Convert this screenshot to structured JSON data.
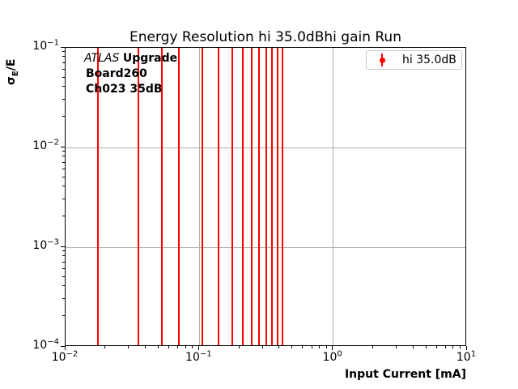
{
  "figure": {
    "title": "Energy Resolution hi 35.0dBhi gain Run",
    "xlabel": "Input Current [mA]",
    "ylabel": {
      "sigma": "σ",
      "sub": "E",
      "rest": "/E"
    },
    "annotation": {
      "experiment": "ATLAS",
      "upgrade": "Upgrade",
      "board": "Board260",
      "channel": "Ch023 35dB"
    },
    "legend": {
      "label": "hi 35.0dB"
    }
  },
  "colors": {
    "series": "#ff0000",
    "grid": "#b0b0b0",
    "spine": "#000000",
    "legend_border": "#cccccc"
  },
  "chart_data": {
    "type": "scatter",
    "subtype": "errorbar",
    "title": "Energy Resolution hi 35.0dBhi gain Run",
    "xlabel": "Input Current [mA]",
    "ylabel": "sigma_E/E",
    "xscale": "log",
    "yscale": "log",
    "xlim": [
      0.01,
      10
    ],
    "ylim": [
      0.0001,
      0.1
    ],
    "x_tick_exponents": [
      -2,
      -1,
      0,
      1
    ],
    "y_tick_exponents": [
      -1,
      -2,
      -3,
      -4
    ],
    "x_tick_labels": [
      "10^-2",
      "10^-1",
      "10^0",
      "10^1"
    ],
    "y_tick_labels": [
      "10^-1",
      "10^-2",
      "10^-3",
      "10^-4"
    ],
    "grid": true,
    "legend_position": "upper right",
    "series": [
      {
        "name": "hi 35.0dB",
        "color": "#ff0000",
        "marker": "circle-with-errorbar",
        "x": [
          0.0175,
          0.035,
          0.0525,
          0.07,
          0.105,
          0.14,
          0.175,
          0.21,
          0.245,
          0.28,
          0.315,
          0.35,
          0.385,
          0.42
        ],
        "note": "error bars span beyond the visible y-range, appearing as full-height vertical lines"
      }
    ]
  }
}
